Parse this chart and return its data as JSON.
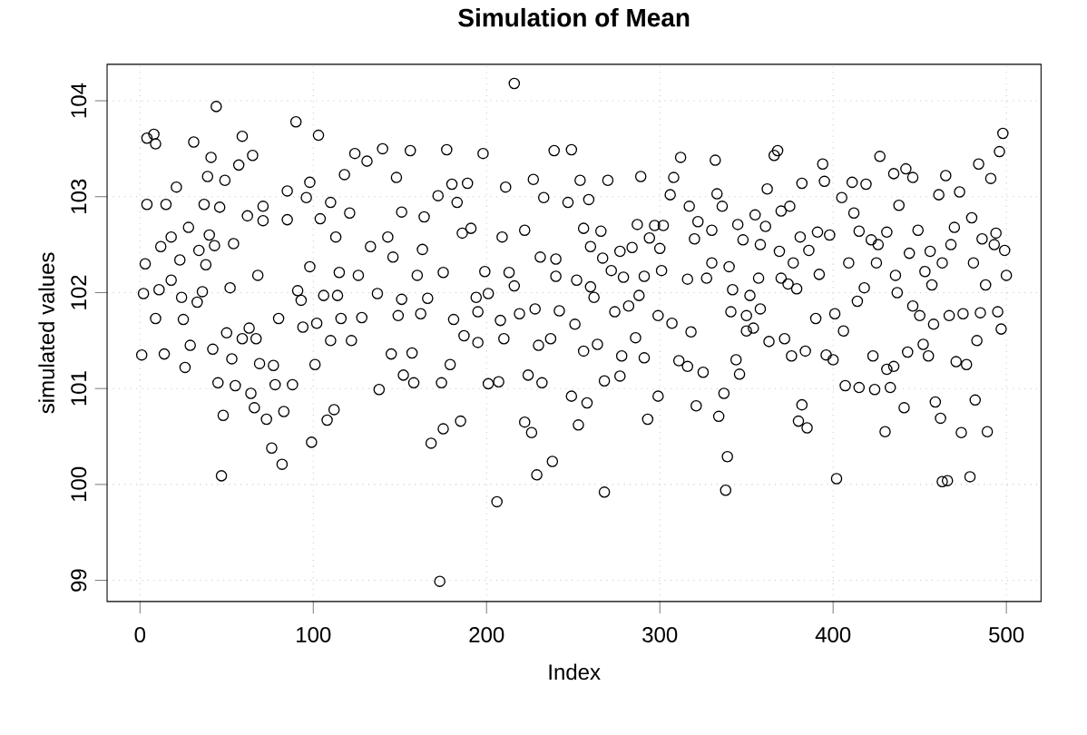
{
  "chart_data": {
    "type": "scatter",
    "title": "Simulation of Mean",
    "xlabel": "Index",
    "ylabel": "simulated values",
    "xlim": [
      -19,
      520
    ],
    "ylim": [
      98.78,
      104.38
    ],
    "xticks": [
      0,
      100,
      200,
      300,
      400,
      500
    ],
    "yticks": [
      99,
      100,
      101,
      102,
      103,
      104
    ],
    "grid": true,
    "marker": "circle",
    "series": [
      {
        "color": "#000000",
        "x": [
          4,
          8,
          9,
          21,
          4,
          15,
          31,
          41,
          44,
          39,
          49,
          57,
          59,
          65,
          37,
          46,
          28,
          12,
          18,
          3,
          23,
          34,
          38,
          43,
          40,
          54,
          62,
          68,
          2,
          11,
          18,
          24,
          36,
          33,
          52,
          9,
          25,
          1,
          14,
          29,
          42,
          50,
          59,
          63,
          67,
          53,
          69,
          80,
          26,
          45,
          55,
          64,
          78,
          88,
          77,
          48,
          66,
          73,
          83,
          76,
          82,
          47,
          99,
          108,
          112,
          71,
          85,
          90,
          103,
          98,
          96,
          71,
          85,
          104,
          113,
          98,
          115,
          91,
          93,
          106,
          114,
          94,
          102,
          101,
          110,
          110,
          216,
          124,
          131,
          140,
          156,
          177,
          198,
          118,
          148,
          180,
          189,
          211,
          227,
          239,
          121,
          151,
          164,
          172,
          183,
          233,
          143,
          163,
          186,
          191,
          222,
          209,
          133,
          126,
          146,
          160,
          175,
          199,
          213,
          231,
          240,
          137,
          151,
          166,
          194,
          201,
          216,
          116,
          128,
          149,
          162,
          181,
          195,
          208,
          219,
          228,
          242,
          122,
          145,
          157,
          187,
          195,
          210,
          230,
          237,
          152,
          158,
          174,
          179,
          201,
          207,
          224,
          232,
          138,
          168,
          175,
          185,
          222,
          226,
          238,
          229,
          206,
          173,
          249,
          312,
          332,
          366,
          368,
          254,
          270,
          289,
          308,
          362,
          247,
          259,
          306,
          317,
          336,
          333,
          370,
          256,
          266,
          287,
          297,
          302,
          322,
          330,
          345,
          355,
          361,
          260,
          277,
          284,
          294,
          300,
          320,
          348,
          358,
          267,
          272,
          279,
          301,
          316,
          330,
          340,
          240,
          252,
          260,
          291,
          327,
          357,
          262,
          274,
          282,
          288,
          342,
          352,
          370,
          299,
          307,
          318,
          341,
          350,
          358,
          350,
          354,
          363,
          251,
          256,
          264,
          286,
          291,
          278,
          311,
          316,
          325,
          344,
          346,
          268,
          277,
          249,
          258,
          253,
          299,
          293,
          321,
          334,
          337,
          339,
          338,
          268,
          498,
          496,
          394,
          395,
          427,
          435,
          442,
          446,
          465,
          484,
          491,
          382,
          411,
          419,
          405,
          473,
          461,
          438,
          480,
          375,
          412,
          391,
          398,
          415,
          431,
          449,
          470,
          494,
          381,
          422,
          456,
          486,
          493,
          499,
          369,
          386,
          409,
          426,
          425,
          444,
          468,
          463,
          481,
          377,
          392,
          436,
          453,
          500,
          488,
          374,
          379,
          418,
          437,
          457,
          414,
          446,
          450,
          467,
          475,
          485,
          495,
          390,
          401,
          406,
          458,
          497,
          372,
          376,
          384,
          396,
          400,
          423,
          443,
          452,
          455,
          471,
          477,
          483,
          431,
          435,
          407,
          415,
          424,
          433,
          441,
          459,
          482,
          382,
          380,
          385,
          430,
          462,
          474,
          489,
          402,
          463,
          466,
          479
        ],
        "values": [
          103.61,
          103.65,
          103.55,
          103.1,
          102.92,
          102.92,
          103.57,
          103.41,
          103.94,
          103.21,
          103.17,
          103.33,
          103.63,
          103.43,
          102.92,
          102.89,
          102.68,
          102.48,
          102.58,
          102.3,
          102.34,
          102.44,
          102.29,
          102.49,
          102.6,
          102.51,
          102.8,
          102.18,
          101.99,
          102.03,
          102.13,
          101.95,
          102.01,
          101.9,
          102.05,
          101.73,
          101.72,
          101.35,
          101.36,
          101.45,
          101.41,
          101.58,
          101.52,
          101.63,
          101.52,
          101.31,
          101.26,
          101.73,
          101.22,
          101.06,
          101.03,
          100.95,
          101.04,
          101.04,
          101.24,
          100.72,
          100.8,
          100.68,
          100.76,
          100.38,
          100.21,
          100.09,
          100.44,
          100.67,
          100.78,
          102.9,
          103.06,
          103.78,
          103.64,
          103.15,
          102.99,
          102.75,
          102.76,
          102.77,
          102.58,
          102.27,
          102.21,
          102.02,
          101.92,
          101.97,
          101.97,
          101.64,
          101.68,
          101.25,
          101.5,
          102.94,
          104.18,
          103.45,
          103.37,
          103.5,
          103.48,
          103.49,
          103.45,
          103.23,
          103.2,
          103.13,
          103.14,
          103.1,
          103.18,
          103.48,
          102.83,
          102.84,
          102.79,
          103.01,
          102.94,
          102.99,
          102.58,
          102.45,
          102.62,
          102.67,
          102.65,
          102.58,
          102.48,
          102.18,
          102.37,
          102.18,
          102.21,
          102.22,
          102.21,
          102.37,
          102.35,
          101.99,
          101.93,
          101.94,
          101.95,
          101.99,
          102.07,
          101.73,
          101.74,
          101.76,
          101.78,
          101.72,
          101.8,
          101.71,
          101.78,
          101.83,
          101.81,
          101.5,
          101.36,
          101.37,
          101.55,
          101.48,
          101.52,
          101.45,
          101.52,
          101.14,
          101.06,
          101.06,
          101.25,
          101.05,
          101.07,
          101.14,
          101.06,
          100.99,
          100.43,
          100.58,
          100.66,
          100.65,
          100.54,
          100.24,
          100.1,
          99.82,
          98.99,
          103.49,
          103.41,
          103.38,
          103.43,
          103.48,
          103.17,
          103.17,
          103.21,
          103.2,
          103.08,
          102.94,
          102.97,
          103.02,
          102.9,
          102.9,
          103.03,
          102.85,
          102.67,
          102.64,
          102.71,
          102.7,
          102.7,
          102.74,
          102.65,
          102.71,
          102.81,
          102.69,
          102.48,
          102.43,
          102.47,
          102.57,
          102.46,
          102.56,
          102.55,
          102.5,
          102.36,
          102.23,
          102.16,
          102.23,
          102.14,
          102.31,
          102.27,
          102.17,
          102.13,
          102.06,
          102.17,
          102.15,
          102.15,
          101.95,
          101.8,
          101.86,
          101.97,
          102.03,
          101.97,
          102.15,
          101.76,
          101.68,
          101.59,
          101.8,
          101.76,
          101.83,
          101.6,
          101.63,
          101.49,
          101.67,
          101.39,
          101.46,
          101.53,
          101.32,
          101.34,
          101.29,
          101.23,
          101.17,
          101.3,
          101.15,
          101.08,
          101.13,
          100.92,
          100.85,
          100.62,
          100.92,
          100.68,
          100.82,
          100.71,
          100.95,
          100.29,
          99.94,
          99.92,
          103.66,
          103.47,
          103.34,
          103.16,
          103.42,
          103.24,
          103.29,
          103.2,
          103.22,
          103.34,
          103.19,
          103.14,
          103.15,
          103.13,
          102.99,
          103.05,
          103.02,
          102.91,
          102.78,
          102.9,
          102.83,
          102.63,
          102.6,
          102.64,
          102.63,
          102.65,
          102.68,
          102.62,
          102.58,
          102.55,
          102.43,
          102.56,
          102.5,
          102.44,
          102.43,
          102.44,
          102.31,
          102.5,
          102.31,
          102.41,
          102.5,
          102.31,
          102.31,
          102.31,
          102.19,
          102.18,
          102.22,
          102.18,
          102.08,
          102.09,
          102.04,
          102.05,
          102.0,
          102.08,
          101.91,
          101.86,
          101.76,
          101.76,
          101.78,
          101.79,
          101.8,
          101.73,
          101.78,
          101.6,
          101.67,
          101.62,
          101.52,
          101.34,
          101.39,
          101.35,
          101.3,
          101.34,
          101.38,
          101.46,
          101.34,
          101.28,
          101.25,
          101.5,
          101.2,
          101.23,
          101.03,
          101.01,
          100.99,
          101.01,
          100.8,
          100.86,
          100.88,
          100.83,
          100.66,
          100.59,
          100.55,
          100.69,
          100.54,
          100.55,
          100.06,
          100.03,
          100.04,
          100.08
        ]
      }
    ]
  }
}
